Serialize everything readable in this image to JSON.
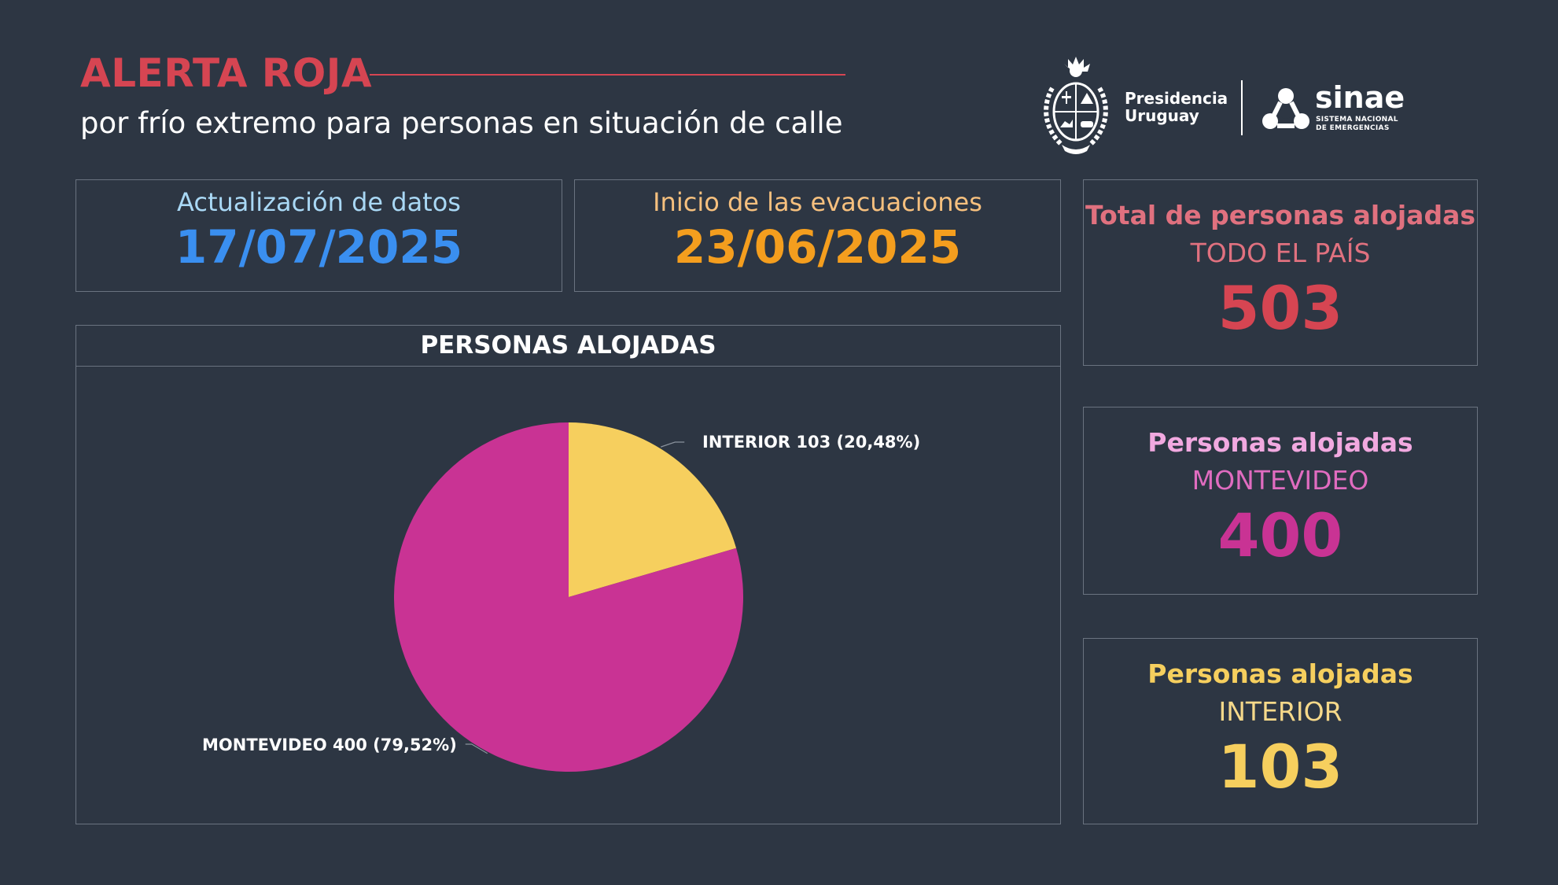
{
  "header": {
    "title": "ALERTA ROJA",
    "subtitle": "por frío extremo para personas en situación de calle"
  },
  "logos": {
    "presidencia_line1": "Presidencia",
    "presidencia_line2": "Uruguay",
    "sinae_name": "sinae",
    "sinae_line1": "SISTEMA NACIONAL",
    "sinae_line2": "DE EMERGENCIAS"
  },
  "dates": {
    "update_label": "Actualización de datos",
    "update_value": "17/07/2025",
    "start_label": "Inicio de las evacuaciones",
    "start_value": "23/06/2025"
  },
  "kpis": {
    "total": {
      "title": "Total de personas alojadas",
      "sub": "TODO EL PAÍS",
      "value": "503"
    },
    "montevideo": {
      "title": "Personas alojadas",
      "sub": "MONTEVIDEO",
      "value": "400"
    },
    "interior": {
      "title": "Personas alojadas",
      "sub": "INTERIOR",
      "value": "103"
    }
  },
  "colors": {
    "background": "#2d3643",
    "alert_red": "#d64552",
    "update_blue": "#3a8ff0",
    "update_label": "#a9d8f5",
    "start_orange": "#f49e1e",
    "start_label": "#f6c07e",
    "total_label": "#e0717f",
    "mvd_label": "#f1a9e0",
    "mvd_value": "#c93394",
    "interior": "#f6cf5e"
  },
  "chart_data": {
    "type": "pie",
    "title": "PERSONAS ALOJADAS",
    "slices": [
      {
        "label": "INTERIOR",
        "value": 103,
        "percent_label": "20,48%",
        "display": "INTERIOR 103 (20,48%)",
        "color": "#f6cf5e"
      },
      {
        "label": "MONTEVIDEO",
        "value": 400,
        "percent_label": "79,52%",
        "display": "MONTEVIDEO 400 (79,52%)",
        "color": "#c93394"
      }
    ]
  }
}
